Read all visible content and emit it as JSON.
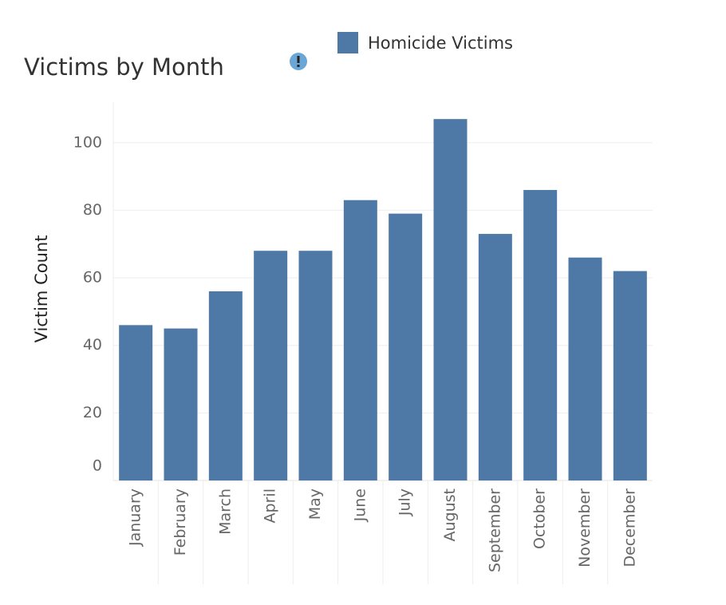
{
  "chart_data": {
    "type": "bar",
    "title": "Victims by Month",
    "y_label": "Victim Count",
    "categories": [
      "January",
      "February",
      "March",
      "April",
      "May",
      "June",
      "July",
      "August",
      "September",
      "October",
      "November",
      "December"
    ],
    "series": [
      {
        "name": "Homicide Victims",
        "color": "#4e79a7",
        "values": [
          46,
          45,
          56,
          68,
          68,
          83,
          79,
          107,
          73,
          86,
          66,
          62
        ]
      }
    ],
    "ylim": [
      0,
      112
    ],
    "yticks": [
      0,
      20,
      40,
      60,
      80,
      100
    ],
    "grid": true
  }
}
